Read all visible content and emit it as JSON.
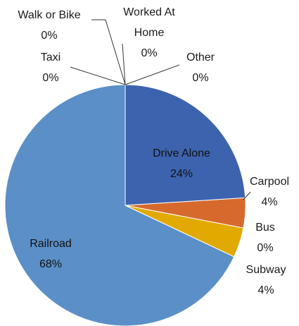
{
  "chart_data": {
    "type": "pie",
    "categories": [
      "Drive Alone",
      "Carpool",
      "Bus",
      "Subway",
      "Railroad",
      "Taxi",
      "Walk or Bike",
      "Worked At Home",
      "Other"
    ],
    "values": [
      24,
      4,
      0,
      4,
      68,
      0,
      0,
      0,
      0
    ],
    "value_labels": [
      "24%",
      "4%",
      "0%",
      "4%",
      "68%",
      "0%",
      "0%",
      "0%",
      "0%"
    ],
    "colors": [
      "#3d63ae",
      "#d7692d",
      "#8c8c8c",
      "#e2aa00",
      "#5b8fc7",
      "#264478",
      "#9e480e",
      "#636363",
      "#997300"
    ]
  }
}
